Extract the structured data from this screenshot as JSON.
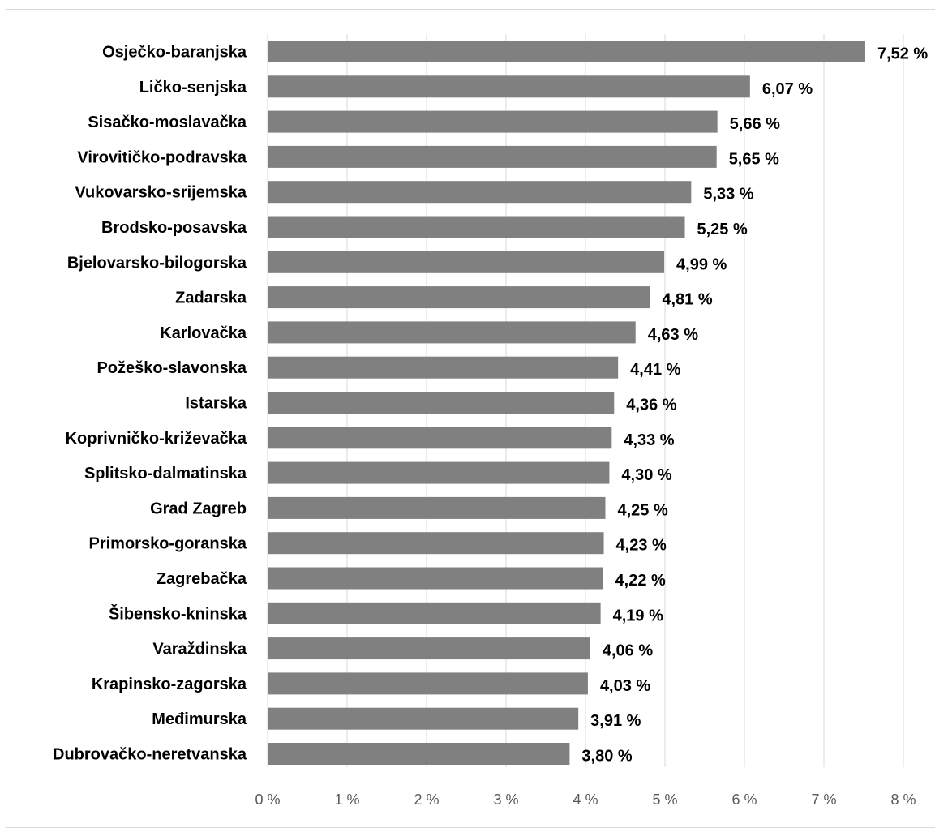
{
  "chart_data": {
    "type": "bar",
    "orientation": "horizontal",
    "categories": [
      "Osječko-baranjska",
      "Ličko-senjska",
      "Sisačko-moslavačka",
      "Virovitičko-podravska",
      "Vukovarsko-srijemska",
      "Brodsko-posavska",
      "Bjelovarsko-bilogorska",
      "Zadarska",
      "Karlovačka",
      "Požeško-slavonska",
      "Istarska",
      "Koprivničko-križevačka",
      "Splitsko-dalmatinska",
      "Grad Zagreb",
      "Primorsko-goranska",
      "Zagrebačka",
      "Šibensko-kninska",
      "Varaždinska",
      "Krapinsko-zagorska",
      "Međimurska",
      "Dubrovačko-neretvanska"
    ],
    "values": [
      7.52,
      6.07,
      5.66,
      5.65,
      5.33,
      5.25,
      4.99,
      4.81,
      4.63,
      4.41,
      4.36,
      4.33,
      4.3,
      4.25,
      4.23,
      4.22,
      4.19,
      4.06,
      4.03,
      3.91,
      3.8
    ],
    "value_labels": [
      "7,52 %",
      "6,07 %",
      "5,66 %",
      "5,65 %",
      "5,33 %",
      "5,25 %",
      "4,99 %",
      "4,81 %",
      "4,63 %",
      "4,41 %",
      "4,36 %",
      "4,33 %",
      "4,30 %",
      "4,25 %",
      "4,23 %",
      "4,22 %",
      "4,19 %",
      "4,06 %",
      "4,03 %",
      "3,91 %",
      "3,80 %"
    ],
    "x_ticks": [
      0,
      1,
      2,
      3,
      4,
      5,
      6,
      7,
      8
    ],
    "x_tick_labels": [
      "0 %",
      "1 %",
      "2 %",
      "3 %",
      "4 %",
      "5 %",
      "6 %",
      "7 %",
      "8 %"
    ],
    "xlim": [
      0,
      8
    ],
    "grid": "vertical",
    "title": "",
    "xlabel": "",
    "ylabel": "",
    "colors": {
      "bar": "#808080",
      "grid": "#d9d9d9",
      "frame": "#d9d9d9"
    }
  }
}
